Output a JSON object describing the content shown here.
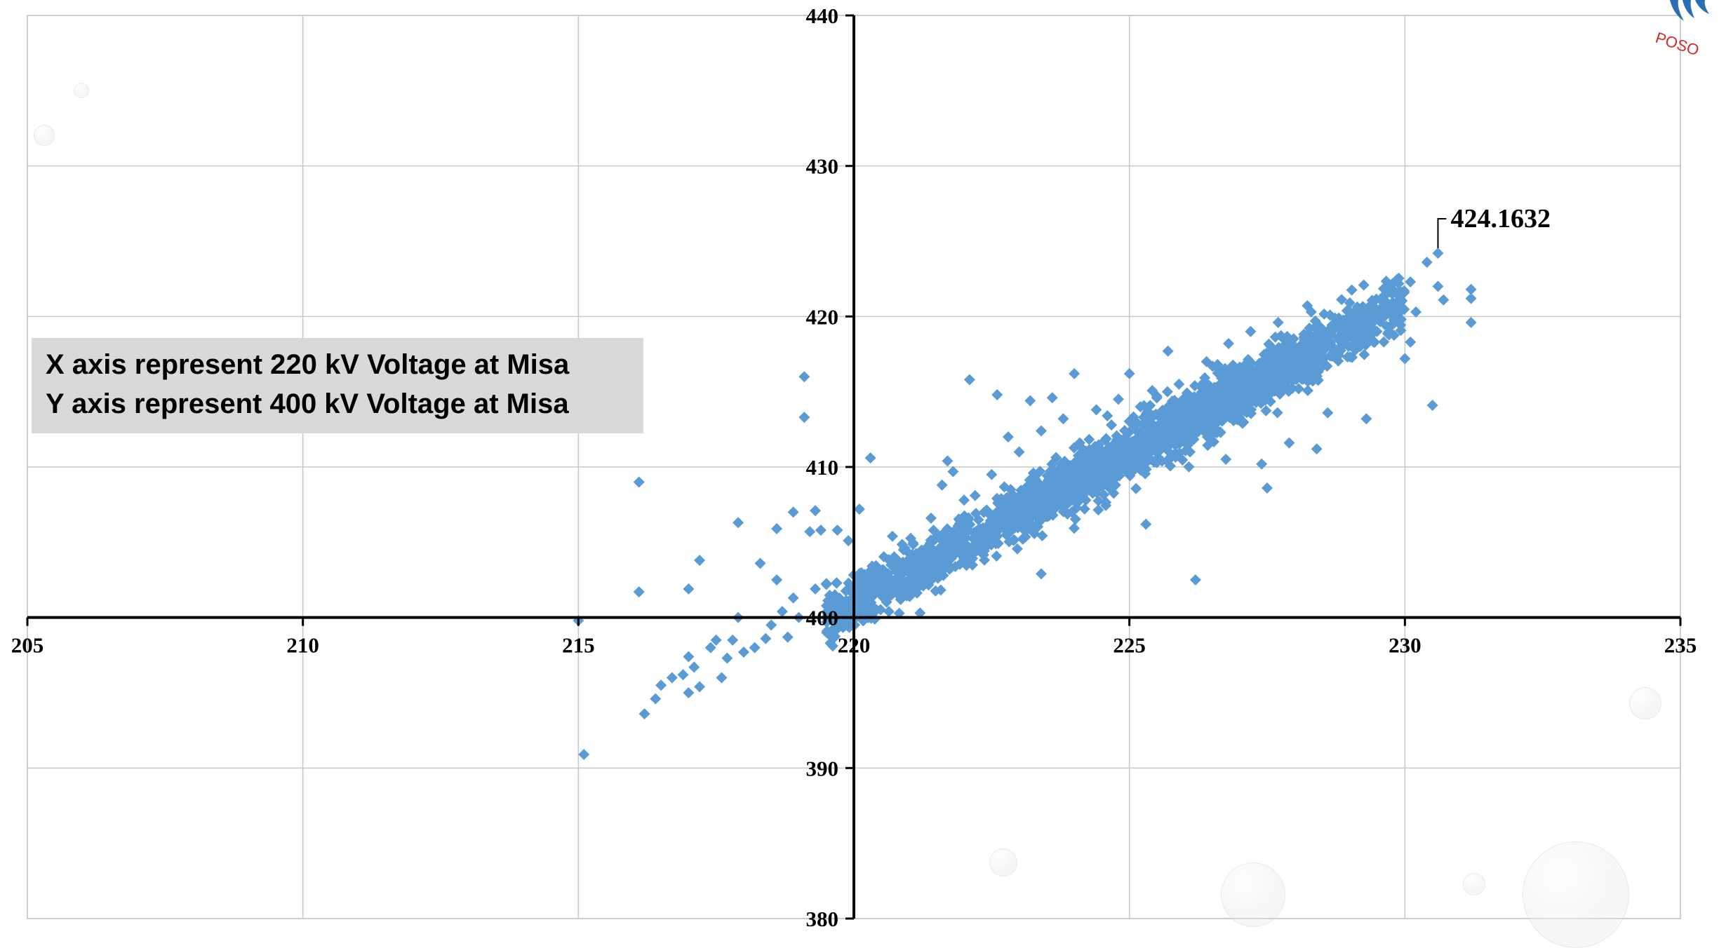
{
  "chart_data": {
    "type": "scatter",
    "title": "",
    "xlabel": "",
    "ylabel": "",
    "xlim": [
      205,
      235
    ],
    "ylim": [
      380,
      440
    ],
    "x_ticks": [
      "205",
      "210",
      "215",
      "220",
      "225",
      "230",
      "235"
    ],
    "y_ticks": [
      "380",
      "390",
      "400",
      "410",
      "420",
      "430",
      "440"
    ],
    "x_axis_crosses_y_at": 400,
    "y_axis_crosses_x_at": 220,
    "grid": true,
    "marker": "diamond",
    "point_color": "#5b9bd5",
    "trend": {
      "slope": 2.0,
      "intercept_at_220": 401.0
    },
    "series": [
      {
        "points": [
          [
            215.0,
            399.8
          ],
          [
            215.1,
            390.9
          ],
          [
            216.1,
            409.0
          ],
          [
            216.1,
            401.7
          ],
          [
            216.2,
            393.6
          ],
          [
            216.4,
            394.6
          ],
          [
            216.5,
            395.5
          ],
          [
            216.7,
            396.0
          ],
          [
            216.9,
            396.2
          ],
          [
            217.0,
            397.4
          ],
          [
            217.0,
            401.9
          ],
          [
            217.0,
            395.0
          ],
          [
            217.1,
            396.7
          ],
          [
            217.2,
            395.4
          ],
          [
            217.2,
            403.8
          ],
          [
            217.4,
            398.0
          ],
          [
            217.5,
            398.5
          ],
          [
            217.6,
            396.0
          ],
          [
            217.7,
            397.3
          ],
          [
            217.8,
            398.5
          ],
          [
            217.9,
            406.3
          ],
          [
            217.9,
            400.0
          ],
          [
            218.0,
            397.7
          ],
          [
            218.2,
            398.0
          ],
          [
            218.3,
            403.6
          ],
          [
            218.4,
            398.6
          ],
          [
            218.5,
            399.5
          ],
          [
            218.6,
            405.9
          ],
          [
            218.6,
            402.5
          ],
          [
            218.7,
            400.4
          ],
          [
            218.8,
            398.7
          ],
          [
            218.9,
            407.0
          ],
          [
            218.9,
            401.3
          ],
          [
            219.0,
            400.0
          ],
          [
            219.1,
            416.0
          ],
          [
            219.1,
            413.3
          ],
          [
            219.2,
            405.7
          ],
          [
            219.3,
            407.1
          ],
          [
            219.3,
            401.9
          ],
          [
            219.4,
            405.8
          ],
          [
            219.5,
            402.2
          ],
          [
            219.6,
            400.0
          ],
          [
            219.7,
            405.8
          ],
          [
            219.8,
            399.4
          ],
          [
            219.9,
            405.1
          ],
          [
            220.0,
            402.1
          ],
          [
            220.1,
            407.2
          ],
          [
            220.3,
            410.6
          ],
          [
            220.3,
            403.0
          ],
          [
            220.5,
            401.8
          ],
          [
            220.7,
            405.4
          ],
          [
            220.9,
            404.5
          ],
          [
            221.1,
            404.0
          ],
          [
            221.2,
            400.3
          ],
          [
            221.4,
            406.6
          ],
          [
            221.6,
            408.8
          ],
          [
            221.7,
            410.4
          ],
          [
            221.8,
            409.7
          ],
          [
            222.0,
            407.8
          ],
          [
            222.1,
            415.8
          ],
          [
            222.2,
            408.1
          ],
          [
            222.5,
            409.5
          ],
          [
            222.6,
            414.8
          ],
          [
            222.8,
            412.0
          ],
          [
            223.0,
            411.0
          ],
          [
            223.2,
            414.4
          ],
          [
            223.4,
            412.4
          ],
          [
            223.4,
            402.9
          ],
          [
            223.6,
            414.6
          ],
          [
            223.8,
            413.2
          ],
          [
            224.0,
            416.2
          ],
          [
            224.1,
            411.6
          ],
          [
            224.4,
            413.8
          ],
          [
            224.6,
            413.4
          ],
          [
            224.8,
            414.5
          ],
          [
            225.0,
            416.2
          ],
          [
            225.2,
            414.0
          ],
          [
            225.3,
            406.2
          ],
          [
            225.5,
            414.7
          ],
          [
            225.7,
            417.7
          ],
          [
            225.9,
            415.5
          ],
          [
            226.1,
            411.0
          ],
          [
            226.2,
            402.5
          ],
          [
            226.4,
            417.0
          ],
          [
            226.6,
            416.8
          ],
          [
            226.8,
            418.2
          ],
          [
            227.0,
            415.3
          ],
          [
            227.2,
            419.0
          ],
          [
            227.4,
            410.2
          ],
          [
            227.5,
            408.6
          ],
          [
            227.7,
            419.6
          ],
          [
            227.9,
            411.6
          ],
          [
            228.1,
            417.5
          ],
          [
            228.3,
            420.3
          ],
          [
            228.4,
            411.2
          ],
          [
            228.6,
            413.6
          ],
          [
            228.8,
            419.9
          ],
          [
            229.0,
            420.9
          ],
          [
            229.2,
            418.9
          ],
          [
            229.3,
            413.2
          ],
          [
            229.4,
            420.4
          ],
          [
            229.6,
            421.2
          ],
          [
            229.8,
            419.6
          ],
          [
            230.0,
            417.2
          ],
          [
            230.1,
            418.3
          ],
          [
            230.1,
            422.3
          ],
          [
            230.2,
            420.3
          ],
          [
            230.4,
            423.6
          ],
          [
            230.5,
            414.1
          ],
          [
            230.6,
            422.0
          ],
          [
            230.6,
            424.2
          ],
          [
            230.7,
            421.1
          ],
          [
            231.2,
            421.8
          ],
          [
            231.2,
            419.6
          ],
          [
            231.2,
            421.2
          ]
        ]
      }
    ],
    "annotations": [
      {
        "x": 230.6,
        "y": 424.1632,
        "text": "424.1632"
      }
    ]
  },
  "legend": {
    "line1": "X axis represent 220 kV Voltage at Misa",
    "line2": "Y axis represent 400 kV Voltage at Misa"
  },
  "logo": {
    "text": "POSO",
    "icon": "poso-logo-icon"
  }
}
